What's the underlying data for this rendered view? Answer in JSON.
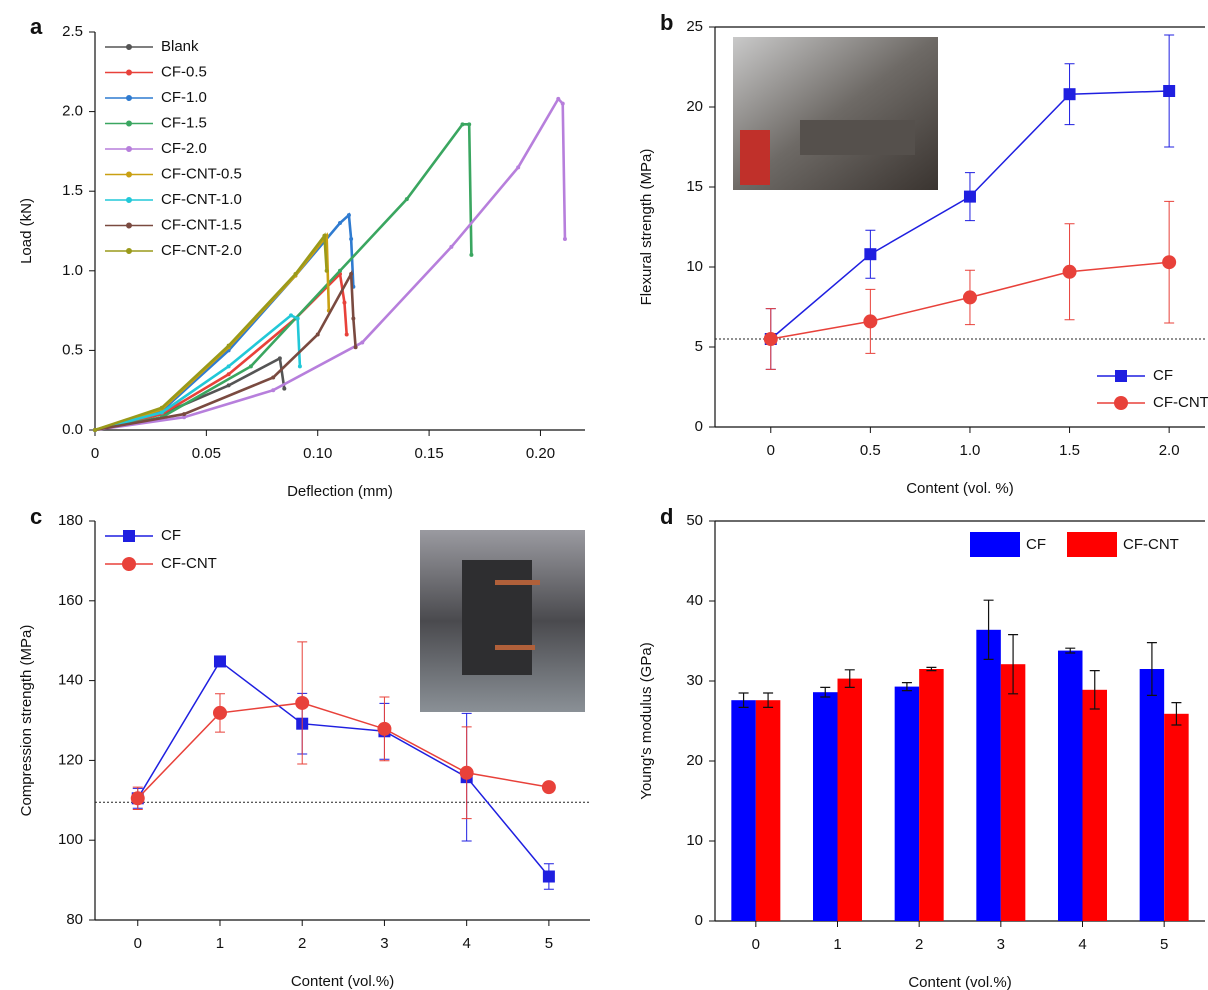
{
  "chart_data": [
    {
      "type": "line",
      "panel_label": "a",
      "xlabel": "Deflection (mm)",
      "ylabel": "Load (kN)",
      "xlim": [
        0,
        0.22
      ],
      "xticks": [
        0,
        0.05,
        {
          "value": 0.1,
          "label": "0.10"
        },
        0.15,
        {
          "value": 0.2,
          "label": "0.20"
        }
      ],
      "ylim": [
        0,
        2.5
      ],
      "yticks": [
        {
          "value": 0,
          "label": "0.0"
        },
        0.5,
        {
          "value": 1,
          "label": "1.0"
        },
        1.5,
        {
          "value": 2,
          "label": "2.0"
        },
        2.5
      ],
      "legend": "upper left",
      "series": [
        {
          "name": "Blank",
          "color": "#555555",
          "x": [
            0,
            0.03,
            0.06,
            0.083,
            0.085
          ],
          "values": [
            0,
            0.1,
            0.28,
            0.45,
            0.26
          ]
        },
        {
          "name": "CF-0.5",
          "color": "#e8413a",
          "x": [
            0,
            0.03,
            0.06,
            0.09,
            0.11,
            0.112,
            0.113
          ],
          "values": [
            0,
            0.1,
            0.35,
            0.7,
            0.98,
            0.8,
            0.6
          ]
        },
        {
          "name": "CF-1.0",
          "color": "#2f7bd0",
          "x": [
            0,
            0.03,
            0.06,
            0.09,
            0.11,
            0.114,
            0.115,
            0.116
          ],
          "values": [
            0,
            0.12,
            0.5,
            0.97,
            1.3,
            1.35,
            1.2,
            0.9
          ]
        },
        {
          "name": "CF-1.5",
          "color": "#3aa660",
          "x": [
            0,
            0.03,
            0.07,
            0.11,
            0.14,
            0.165,
            0.168,
            0.169
          ],
          "values": [
            0,
            0.08,
            0.4,
            1.0,
            1.45,
            1.92,
            1.92,
            1.1
          ]
        },
        {
          "name": "CF-2.0",
          "color": "#b77fdc",
          "x": [
            0,
            0.04,
            0.08,
            0.12,
            0.16,
            0.19,
            0.208,
            0.21,
            0.211
          ],
          "values": [
            0,
            0.08,
            0.25,
            0.55,
            1.15,
            1.65,
            2.08,
            2.05,
            1.2
          ]
        },
        {
          "name": "CF-CNT-0.5",
          "color": "#c9a012",
          "x": [
            0,
            0.03,
            0.06,
            0.09,
            0.104,
            0.105
          ],
          "values": [
            0,
            0.13,
            0.52,
            0.97,
            1.22,
            0.75
          ]
        },
        {
          "name": "CF-CNT-1.0",
          "color": "#22c8d8",
          "x": [
            0,
            0.03,
            0.06,
            0.088,
            0.091,
            0.092
          ],
          "values": [
            0,
            0.11,
            0.4,
            0.72,
            0.7,
            0.4
          ]
        },
        {
          "name": "CF-CNT-1.5",
          "color": "#7a4a40",
          "x": [
            0,
            0.04,
            0.08,
            0.1,
            0.115,
            0.116,
            0.117
          ],
          "values": [
            0,
            0.1,
            0.33,
            0.6,
            0.98,
            0.7,
            0.52
          ]
        },
        {
          "name": "CF-CNT-2.0",
          "color": "#9a9a1a",
          "x": [
            0,
            0.03,
            0.06,
            0.09,
            0.103,
            0.104
          ],
          "values": [
            0,
            0.14,
            0.53,
            0.98,
            1.22,
            1.0
          ]
        }
      ]
    },
    {
      "type": "line",
      "panel_label": "b",
      "xlabel": "Content (vol. %)",
      "ylabel": "Flexural strength (MPa)",
      "x": [
        0,
        0.5,
        1,
        1.5,
        2
      ],
      "xlim": [
        -0.28,
        2.18
      ],
      "xticks": [
        0,
        0.5,
        {
          "value": 1,
          "label": "1.0"
        },
        1.5,
        {
          "value": 2,
          "label": "2.0"
        }
      ],
      "ylim": [
        0,
        25
      ],
      "yticks": [
        0,
        5,
        10,
        15,
        20,
        25
      ],
      "hline": 5.5,
      "legend": "lower right",
      "series": [
        {
          "name": "CF",
          "color": "#1f1fe0",
          "marker": "square",
          "values": [
            5.5,
            10.8,
            14.4,
            20.8,
            21.0
          ],
          "errors": [
            1.9,
            1.5,
            1.5,
            1.9,
            3.5
          ]
        },
        {
          "name": "CF-CNT",
          "color": "#e8413a",
          "marker": "circle",
          "values": [
            5.5,
            6.6,
            8.1,
            9.7,
            10.3
          ],
          "errors": [
            1.9,
            2.0,
            1.7,
            3.0,
            3.8
          ]
        }
      ]
    },
    {
      "type": "line",
      "panel_label": "c",
      "xlabel": "Content (vol.%)",
      "ylabel": "Compression strength (MPa)",
      "x": [
        0,
        1,
        2,
        3,
        4,
        5
      ],
      "xlim": [
        -0.52,
        5.5
      ],
      "xticks": [
        0,
        1,
        2,
        3,
        4,
        5
      ],
      "ylim": [
        80,
        180
      ],
      "yticks": [
        80,
        100,
        120,
        140,
        160,
        180
      ],
      "hline": 109.5,
      "legend": "upper left",
      "series": [
        {
          "name": "CF",
          "color": "#1f1fe0",
          "marker": "square",
          "values": [
            110.5,
            144.8,
            129.2,
            127.3,
            115.8,
            90.9
          ],
          "errors": [
            2.5,
            1.2,
            7.6,
            7.0,
            16,
            3.2
          ]
        },
        {
          "name": "CF-CNT",
          "color": "#e8413a",
          "marker": "circle",
          "values": [
            110.5,
            131.9,
            134.4,
            127.9,
            116.9,
            113.3
          ],
          "errors": [
            2.8,
            4.8,
            15.3,
            8,
            11.5,
            0.8
          ]
        }
      ]
    },
    {
      "type": "bar",
      "panel_label": "d",
      "xlabel": "Content (vol.%)",
      "ylabel": "Young's modulus (GPa)",
      "categories": [
        "0",
        "1",
        "2",
        "3",
        "4",
        "5"
      ],
      "ylim": [
        0,
        50
      ],
      "yticks": [
        0,
        10,
        20,
        30,
        40,
        50
      ],
      "legend": "upper right",
      "series": [
        {
          "name": "CF",
          "color": "#0000ff",
          "values": [
            27.6,
            28.6,
            29.3,
            36.4,
            33.8,
            31.5
          ],
          "errors": [
            0.9,
            0.6,
            0.5,
            3.7,
            0.3,
            3.3
          ]
        },
        {
          "name": "CF-CNT",
          "color": "#ff0000",
          "values": [
            27.6,
            30.3,
            31.5,
            32.1,
            28.9,
            25.9
          ],
          "errors": [
            0.9,
            1.1,
            0.2,
            3.7,
            2.4,
            1.4
          ]
        }
      ]
    }
  ]
}
